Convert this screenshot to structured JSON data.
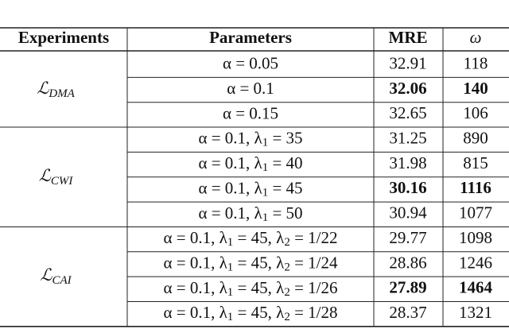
{
  "table": {
    "header": [
      "Experiments",
      "Parameters",
      "MRE",
      "ω"
    ],
    "groups": [
      {
        "label": "ℒ",
        "label_sub": "DMA",
        "rows": [
          {
            "parameters": [
              "α = 0.05"
            ],
            "mre": 32.91,
            "omega": 118,
            "bold": false
          },
          {
            "parameters": [
              "α = 0.1"
            ],
            "mre": 32.06,
            "omega": 140,
            "bold": true
          },
          {
            "parameters": [
              "α = 0.15"
            ],
            "mre": 32.65,
            "omega": 106,
            "bold": false
          }
        ]
      },
      {
        "label": "ℒ",
        "label_sub": "CWI",
        "rows": [
          {
            "parameters": [
              "α = 0.1, λ",
              "1",
              " = 35"
            ],
            "mre": 31.25,
            "omega": 890,
            "bold": false
          },
          {
            "parameters": [
              "α = 0.1, λ",
              "1",
              " = 40"
            ],
            "mre": 31.98,
            "omega": 815,
            "bold": false
          },
          {
            "parameters": [
              "α = 0.1, λ",
              "1",
              " = 45"
            ],
            "mre": 30.16,
            "omega": 1116,
            "bold": true
          },
          {
            "parameters": [
              "α = 0.1, λ",
              "1",
              " = 50"
            ],
            "mre": 30.94,
            "omega": 1077,
            "bold": false
          }
        ]
      },
      {
        "label": "ℒ",
        "label_sub": "CAI",
        "rows": [
          {
            "parameters": [
              "α = 0.1, λ",
              "1",
              " = 45, λ",
              "2",
              " = 1/22"
            ],
            "mre": 29.77,
            "omega": 1098,
            "bold": false
          },
          {
            "parameters": [
              "α = 0.1, λ",
              "1",
              " = 45, λ",
              "2",
              " = 1/24"
            ],
            "mre": 28.86,
            "omega": 1246,
            "bold": false
          },
          {
            "parameters": [
              "α = 0.1, λ",
              "1",
              " = 45, λ",
              "2",
              " = 1/26"
            ],
            "mre": 27.89,
            "omega": 1464,
            "bold": true
          },
          {
            "parameters": [
              "α = 0.1, λ",
              "1",
              " = 45, λ",
              "2",
              " = 1/28"
            ],
            "mre": 28.37,
            "omega": 1321,
            "bold": false
          }
        ]
      }
    ]
  }
}
